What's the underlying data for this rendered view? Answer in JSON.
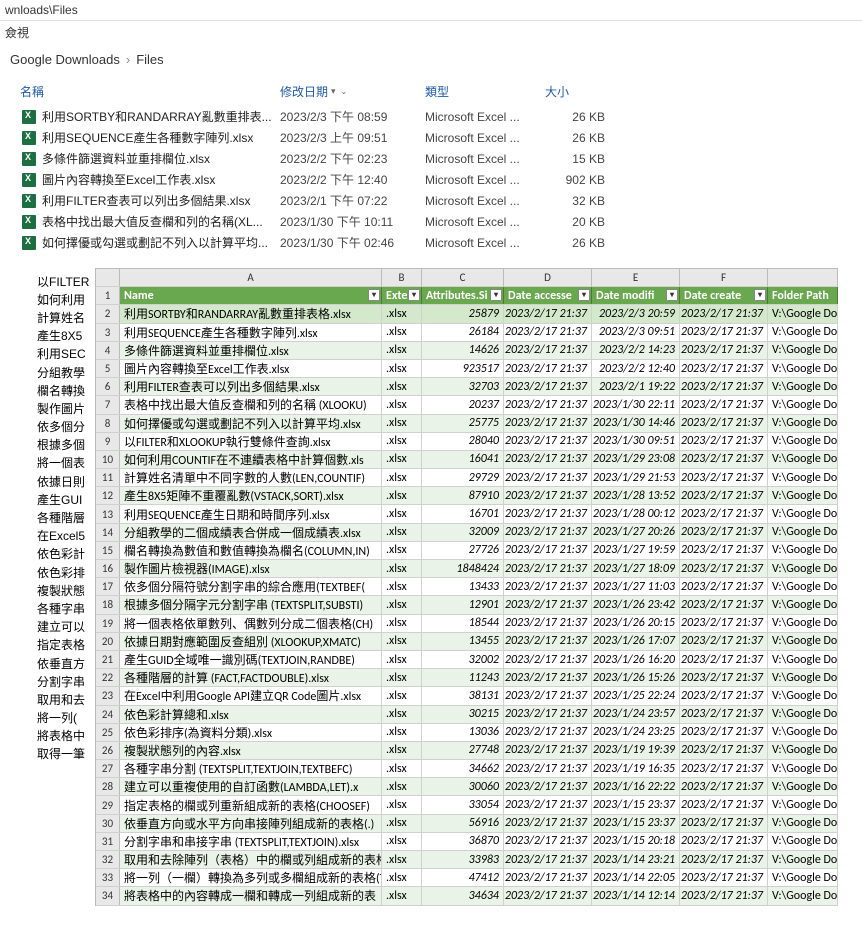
{
  "window": {
    "title_fragment": "wnloads\\Files",
    "menu_fragment": "僉視"
  },
  "breadcrumb": {
    "item1": "Google Downloads",
    "item2": "Files"
  },
  "explorer_columns": {
    "name": "名稱",
    "date": "修改日期",
    "type": "類型",
    "size": "大小"
  },
  "explorer_files": [
    {
      "name": "利用SORTBY和RANDARRAY亂數重排表...",
      "date": "2023/2/3 下午 08:59",
      "type": "Microsoft Excel ...",
      "size": "26 KB"
    },
    {
      "name": "利用SEQUENCE產生各種數字陣列.xlsx",
      "date": "2023/2/3 上午 09:51",
      "type": "Microsoft Excel ...",
      "size": "26 KB"
    },
    {
      "name": "多條件篩選資料並重排欄位.xlsx",
      "date": "2023/2/2 下午 02:23",
      "type": "Microsoft Excel ...",
      "size": "15 KB"
    },
    {
      "name": "圖片內容轉換至Excel工作表.xlsx",
      "date": "2023/2/2 下午 12:40",
      "type": "Microsoft Excel ...",
      "size": "902 KB"
    },
    {
      "name": "利用FILTER查表可以列出多個結果.xlsx",
      "date": "2023/2/1 下午 07:22",
      "type": "Microsoft Excel ...",
      "size": "32 KB"
    },
    {
      "name": "表格中找出最大值反查欄和列的名稱(XL...",
      "date": "2023/1/30 下午 10:11",
      "type": "Microsoft Excel ...",
      "size": "20 KB"
    },
    {
      "name": "如何擇優或勾選或劃記不列入以計算平均...",
      "date": "2023/1/30 下午 02:46",
      "type": "Microsoft Excel ...",
      "size": "26 KB"
    }
  ],
  "sidebar_files": [
    "以FILTER",
    "如何利用",
    "計算姓名",
    "產生8X5",
    "利用SEC",
    "分組教學",
    "欄名轉換",
    "製作圖片",
    "依多個分",
    "根據多個",
    "將一個表",
    "依據日則",
    "產生GUI",
    "各種階層",
    "在Excel5",
    "依色彩計",
    "依色彩排",
    "複製狀態",
    "各種字串",
    "建立可以",
    "指定表格",
    "依垂直方",
    "分割字串",
    "取用和去",
    "將一列(",
    "將表格中",
    "取得一筆"
  ],
  "ss_columns": [
    "A",
    "B",
    "C",
    "D",
    "E",
    "F",
    ""
  ],
  "ss_headers": {
    "name": "Name",
    "ext": "Exte",
    "attr": "Attributes.Si",
    "acc": "Date accesse",
    "mod": "Date modifi",
    "crt": "Date create",
    "path": "Folder Path"
  },
  "ss_rows": [
    {
      "n": 2,
      "name": "利用SORTBY和RANDARRAY亂數重排表格.xlsx",
      "ext": ".xlsx",
      "attr": "25879",
      "acc": "2023/2/17 21:37",
      "mod": "2023/2/3 20:59",
      "crt": "2023/2/17 21:37",
      "path": "V:\\Google Do",
      "sel": true
    },
    {
      "n": 3,
      "name": "利用SEQUENCE產生各種數字陣列.xlsx",
      "ext": ".xlsx",
      "attr": "26184",
      "acc": "2023/2/17 21:37",
      "mod": "2023/2/3 09:51",
      "crt": "2023/2/17 21:37",
      "path": "V:\\Google Do"
    },
    {
      "n": 4,
      "name": "多條件篩選資料並重排欄位.xlsx",
      "ext": ".xlsx",
      "attr": "14626",
      "acc": "2023/2/17 21:37",
      "mod": "2023/2/2 14:23",
      "crt": "2023/2/17 21:37",
      "path": "V:\\Google Do"
    },
    {
      "n": 5,
      "name": "圖片內容轉換至Excel工作表.xlsx",
      "ext": ".xlsx",
      "attr": "923517",
      "acc": "2023/2/17 21:37",
      "mod": "2023/2/2 12:40",
      "crt": "2023/2/17 21:37",
      "path": "V:\\Google Do"
    },
    {
      "n": 6,
      "name": "利用FILTER查表可以列出多個結果.xlsx",
      "ext": ".xlsx",
      "attr": "32703",
      "acc": "2023/2/17 21:37",
      "mod": "2023/2/1 19:22",
      "crt": "2023/2/17 21:37",
      "path": "V:\\Google Do"
    },
    {
      "n": 7,
      "name": "表格中找出最大值反查欄和列的名稱 (XLOOKU)",
      "ext": ".xlsx",
      "attr": "20237",
      "acc": "2023/2/17 21:37",
      "mod": "2023/1/30 22:11",
      "crt": "2023/2/17 21:37",
      "path": "V:\\Google Do"
    },
    {
      "n": 8,
      "name": "如何擇優或勾選或劃記不列入以計算平均.xlsx",
      "ext": ".xlsx",
      "attr": "25775",
      "acc": "2023/2/17 21:37",
      "mod": "2023/1/30 14:46",
      "crt": "2023/2/17 21:37",
      "path": "V:\\Google Do"
    },
    {
      "n": 9,
      "name": "以FILTER和XLOOKUP執行雙條件查詢.xlsx",
      "ext": ".xlsx",
      "attr": "28040",
      "acc": "2023/2/17 21:37",
      "mod": "2023/1/30 09:51",
      "crt": "2023/2/17 21:37",
      "path": "V:\\Google Do"
    },
    {
      "n": 10,
      "name": "如何利用COUNTIF在不連續表格中計算個數.xls",
      "ext": ".xlsx",
      "attr": "16041",
      "acc": "2023/2/17 21:37",
      "mod": "2023/1/29 23:08",
      "crt": "2023/2/17 21:37",
      "path": "V:\\Google Do"
    },
    {
      "n": 11,
      "name": "計算姓名清單中不同字數的人數(LEN,COUNTIF)",
      "ext": ".xlsx",
      "attr": "29729",
      "acc": "2023/2/17 21:37",
      "mod": "2023/1/29 21:53",
      "crt": "2023/2/17 21:37",
      "path": "V:\\Google Do"
    },
    {
      "n": 12,
      "name": "產生8X5矩陣不重覆亂數(VSTACK,SORT).xlsx",
      "ext": ".xlsx",
      "attr": "87910",
      "acc": "2023/2/17 21:37",
      "mod": "2023/1/28 13:52",
      "crt": "2023/2/17 21:37",
      "path": "V:\\Google Do"
    },
    {
      "n": 13,
      "name": "利用SEQUENCE產生日期和時間序列.xlsx",
      "ext": ".xlsx",
      "attr": "16701",
      "acc": "2023/2/17 21:37",
      "mod": "2023/1/28 00:12",
      "crt": "2023/2/17 21:37",
      "path": "V:\\Google Do"
    },
    {
      "n": 14,
      "name": "分組教學的二個成績表合併成一個成績表.xlsx",
      "ext": ".xlsx",
      "attr": "32009",
      "acc": "2023/2/17 21:37",
      "mod": "2023/1/27 20:26",
      "crt": "2023/2/17 21:37",
      "path": "V:\\Google Do"
    },
    {
      "n": 15,
      "name": "欄名轉換為數值和數值轉換為欄名(COLUMN,IN)",
      "ext": ".xlsx",
      "attr": "27726",
      "acc": "2023/2/17 21:37",
      "mod": "2023/1/27 19:59",
      "crt": "2023/2/17 21:37",
      "path": "V:\\Google Do"
    },
    {
      "n": 16,
      "name": "製作圖片檢視器(IMAGE).xlsx",
      "ext": ".xlsx",
      "attr": "1848424",
      "acc": "2023/2/17 21:37",
      "mod": "2023/1/27 18:09",
      "crt": "2023/2/17 21:37",
      "path": "V:\\Google Do"
    },
    {
      "n": 17,
      "name": "依多個分隔符號分割字串的綜合應用(TEXTBEF(",
      "ext": ".xlsx",
      "attr": "13433",
      "acc": "2023/2/17 21:37",
      "mod": "2023/1/27 11:03",
      "crt": "2023/2/17 21:37",
      "path": "V:\\Google Do"
    },
    {
      "n": 18,
      "name": "根據多個分隔字元分割字串 (TEXTSPLIT,SUBSTI)",
      "ext": ".xlsx",
      "attr": "12901",
      "acc": "2023/2/17 21:37",
      "mod": "2023/1/26 23:42",
      "crt": "2023/2/17 21:37",
      "path": "V:\\Google Do"
    },
    {
      "n": 19,
      "name": "將一個表格依單數列、偶數列分成二個表格(CH)",
      "ext": ".xlsx",
      "attr": "18544",
      "acc": "2023/2/17 21:37",
      "mod": "2023/1/26 20:15",
      "crt": "2023/2/17 21:37",
      "path": "V:\\Google Do"
    },
    {
      "n": 20,
      "name": "依據日期對應範圍反查組別 (XLOOKUP,XMATC)",
      "ext": ".xlsx",
      "attr": "13455",
      "acc": "2023/2/17 21:37",
      "mod": "2023/1/26 17:07",
      "crt": "2023/2/17 21:37",
      "path": "V:\\Google Do"
    },
    {
      "n": 21,
      "name": "產生GUID全域唯一識別碼(TEXTJOIN,RANDBE)",
      "ext": ".xlsx",
      "attr": "32002",
      "acc": "2023/2/17 21:37",
      "mod": "2023/1/26 16:20",
      "crt": "2023/2/17 21:37",
      "path": "V:\\Google Do"
    },
    {
      "n": 22,
      "name": "各種階層的計算 (FACT,FACTDOUBLE).xlsx",
      "ext": ".xlsx",
      "attr": "11243",
      "acc": "2023/2/17 21:37",
      "mod": "2023/1/26 15:26",
      "crt": "2023/2/17 21:37",
      "path": "V:\\Google Do"
    },
    {
      "n": 23,
      "name": "在Excel中利用Google API建立QR Code圖片.xlsx",
      "ext": ".xlsx",
      "attr": "38131",
      "acc": "2023/2/17 21:37",
      "mod": "2023/1/25 22:24",
      "crt": "2023/2/17 21:37",
      "path": "V:\\Google Do"
    },
    {
      "n": 24,
      "name": "依色彩計算總和.xlsx",
      "ext": ".xlsx",
      "attr": "30215",
      "acc": "2023/2/17 21:37",
      "mod": "2023/1/24 23:57",
      "crt": "2023/2/17 21:37",
      "path": "V:\\Google Do"
    },
    {
      "n": 25,
      "name": "依色彩排序(為資料分類).xlsx",
      "ext": ".xlsx",
      "attr": "13036",
      "acc": "2023/2/17 21:37",
      "mod": "2023/1/24 23:25",
      "crt": "2023/2/17 21:37",
      "path": "V:\\Google Do"
    },
    {
      "n": 26,
      "name": "複製狀態列的內容.xlsx",
      "ext": ".xlsx",
      "attr": "27748",
      "acc": "2023/2/17 21:37",
      "mod": "2023/1/19 19:39",
      "crt": "2023/2/17 21:37",
      "path": "V:\\Google Do"
    },
    {
      "n": 27,
      "name": "各種字串分割 (TEXTSPLIT,TEXTJOIN,TEXTBEFC)",
      "ext": ".xlsx",
      "attr": "34662",
      "acc": "2023/2/17 21:37",
      "mod": "2023/1/19 16:35",
      "crt": "2023/2/17 21:37",
      "path": "V:\\Google Do"
    },
    {
      "n": 28,
      "name": "建立可以重複使用的自訂函數(LAMBDA,LET).x",
      "ext": ".xlsx",
      "attr": "30060",
      "acc": "2023/2/17 21:37",
      "mod": "2023/1/16 22:22",
      "crt": "2023/2/17 21:37",
      "path": "V:\\Google Do"
    },
    {
      "n": 29,
      "name": "指定表格的欄或列重新組成新的表格(CHOOSEF)",
      "ext": ".xlsx",
      "attr": "33054",
      "acc": "2023/2/17 21:37",
      "mod": "2023/1/15 23:37",
      "crt": "2023/2/17 21:37",
      "path": "V:\\Google Do"
    },
    {
      "n": 30,
      "name": "依垂直方向或水平方向串接陣列組成新的表格(.)",
      "ext": ".xlsx",
      "attr": "56916",
      "acc": "2023/2/17 21:37",
      "mod": "2023/1/15 23:37",
      "crt": "2023/2/17 21:37",
      "path": "V:\\Google Do"
    },
    {
      "n": 31,
      "name": "分割字串和串接字串 (TEXTSPLIT,TEXTJOIN).xlsx",
      "ext": ".xlsx",
      "attr": "36870",
      "acc": "2023/2/17 21:37",
      "mod": "2023/1/15 20:18",
      "crt": "2023/2/17 21:37",
      "path": "V:\\Google Do"
    },
    {
      "n": 32,
      "name": "取用和去除陣列（表格）中的欄或列組成新的表格",
      "ext": ".xlsx",
      "attr": "33983",
      "acc": "2023/2/17 21:37",
      "mod": "2023/1/14 23:21",
      "crt": "2023/2/17 21:37",
      "path": "V:\\Google Do"
    },
    {
      "n": 33,
      "name": "將一列（一欄）轉換為多列或多欄組成新的表格(T)",
      "ext": ".xlsx",
      "attr": "47412",
      "acc": "2023/2/17 21:37",
      "mod": "2023/1/14 22:05",
      "crt": "2023/2/17 21:37",
      "path": "V:\\Google Do"
    },
    {
      "n": 34,
      "name": "將表格中的內容轉成一欄和轉成一列組成新的表",
      "ext": ".xlsx",
      "attr": "34634",
      "acc": "2023/2/17 21:37",
      "mod": "2023/1/14 12:14",
      "crt": "2023/2/17 21:37",
      "path": "V:\\Google Do"
    }
  ],
  "colors": {
    "header_bg": "#6aa84f",
    "alt_row_bg": "#eaf3e7",
    "selected_bg": "#d4e8cc",
    "link_blue": "#1e5aa8",
    "excel_green": "#1d6f42"
  }
}
